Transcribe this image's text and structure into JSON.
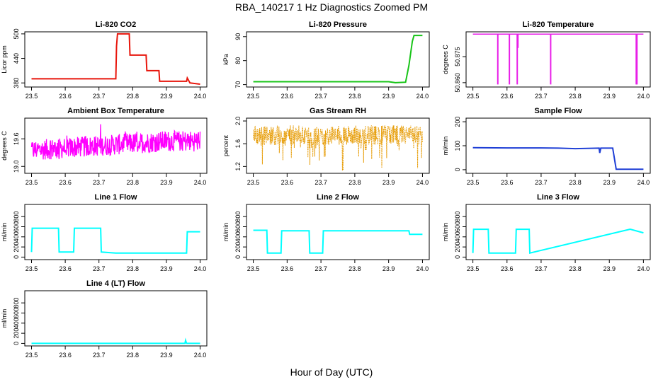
{
  "title": "RBA_140217  1 Hz Diagnostics Zoomed PM",
  "xlabel": "Hour of Day (UTC)",
  "chart_data": [
    {
      "type": "line",
      "title": "Li-820 CO2",
      "ylabel": "Licor ppm",
      "color": "#e8160c",
      "xlim": [
        23.48,
        24.02
      ],
      "ylim": [
        370,
        505
      ],
      "xticks": [
        "23.5",
        "23.6",
        "23.7",
        "23.8",
        "23.9",
        "24.0"
      ],
      "yticks": [
        380,
        440,
        500
      ],
      "series": [
        {
          "x": [
            23.5,
            23.6,
            23.7,
            23.75,
            23.752,
            23.755,
            23.79,
            23.792,
            23.84,
            23.842,
            23.878,
            23.88,
            23.96,
            23.962,
            23.97,
            24.0
          ],
          "y": [
            390,
            390,
            390,
            390,
            470,
            500,
            500,
            448,
            448,
            410,
            410,
            384,
            384,
            392,
            380,
            377
          ]
        }
      ]
    },
    {
      "type": "line",
      "title": "Li-820 Pressure",
      "ylabel": "kPa",
      "color": "#18c418",
      "xlim": [
        23.48,
        24.02
      ],
      "ylim": [
        69,
        92
      ],
      "xticks": [
        "23.5",
        "23.6",
        "23.7",
        "23.8",
        "23.9",
        "24.0"
      ],
      "yticks": [
        70,
        80,
        90
      ],
      "series": [
        {
          "x": [
            23.5,
            23.6,
            23.7,
            23.8,
            23.9,
            23.92,
            23.95,
            23.96,
            23.97,
            23.975,
            24.0
          ],
          "y": [
            71.2,
            71.2,
            71.2,
            71.2,
            71.2,
            70.8,
            71.0,
            78,
            88,
            90.5,
            90.5
          ]
        }
      ]
    },
    {
      "type": "line",
      "title": "Li-820 Temperature",
      "ylabel": "degrees C",
      "color": "#e81ee8",
      "xlim": [
        23.48,
        24.02
      ],
      "ylim": [
        50.8575,
        50.8893
      ],
      "xticks": [
        "23.5",
        "23.6",
        "23.7",
        "23.8",
        "23.9",
        "24.0"
      ],
      "yticks": [
        "50.860",
        "50.875"
      ],
      "baseline": 50.888,
      "spikes": [
        {
          "x": 23.573,
          "y": 50.859
        },
        {
          "x": 23.607,
          "y": 50.859
        },
        {
          "x": 23.63,
          "y": 50.859
        },
        {
          "x": 23.632,
          "y": 50.88
        },
        {
          "x": 23.728,
          "y": 50.859
        },
        {
          "x": 23.979,
          "y": 50.859
        },
        {
          "x": 23.981,
          "y": 50.859
        }
      ]
    },
    {
      "type": "line",
      "title": "Ambient Box Temperature",
      "ylabel": "degrees C",
      "color": "#ff00ff",
      "xlim": [
        23.48,
        24.02
      ],
      "ylim": [
        18.85,
        20.05
      ],
      "xticks": [
        "23.5",
        "23.6",
        "23.7",
        "23.8",
        "23.9",
        "24.0"
      ],
      "yticks": [
        "19.0",
        "19.6"
      ],
      "series": [
        {
          "x": [
            23.5,
            23.6,
            23.7,
            23.8,
            23.9,
            24.0
          ],
          "y": [
            19.35,
            19.4,
            19.45,
            19.5,
            19.55,
            19.55
          ]
        }
      ]
    },
    {
      "type": "line",
      "title": "Gas Stream RH",
      "ylabel": "percent",
      "color": "#e69a00",
      "xlim": [
        23.48,
        24.02
      ],
      "ylim": [
        1.08,
        2.05
      ],
      "xticks": [
        "23.5",
        "23.6",
        "23.7",
        "23.8",
        "23.9",
        "24.0"
      ],
      "yticks": [
        "1.2",
        "1.6",
        "2.0"
      ],
      "series": [
        {
          "x": [
            23.5,
            23.6,
            23.7,
            23.8,
            23.9,
            24.0
          ],
          "y": [
            1.75,
            1.75,
            1.75,
            1.75,
            1.75,
            1.75
          ]
        }
      ]
    },
    {
      "type": "line",
      "title": "Sample Flow",
      "ylabel": "ml/min",
      "color": "#1f3fd6",
      "xlim": [
        23.48,
        24.02
      ],
      "ylim": [
        -15,
        215
      ],
      "xticks": [
        "23.5",
        "23.6",
        "23.7",
        "23.8",
        "23.9",
        "24.0"
      ],
      "yticks": [
        0,
        100,
        200
      ],
      "series": [
        {
          "x": [
            23.5,
            23.6,
            23.7,
            23.75,
            23.8,
            23.87,
            23.872,
            23.875,
            23.91,
            23.92,
            24.0
          ],
          "y": [
            92,
            91,
            91,
            90,
            88,
            90,
            70,
            90,
            90,
            2,
            2
          ]
        }
      ]
    },
    {
      "type": "line",
      "title": "Line 1 Flow",
      "ylabel": "ml/min",
      "color": "#00ffff",
      "xlim": [
        23.48,
        24.02
      ],
      "ylim": [
        -50,
        1040
      ],
      "xticks": [
        "23.5",
        "23.6",
        "23.7",
        "23.8",
        "23.9",
        "24.0"
      ],
      "yticks": [
        0,
        200,
        400,
        600,
        800
      ],
      "series": [
        {
          "x": [
            23.5,
            23.502,
            23.58,
            23.582,
            23.625,
            23.627,
            23.705,
            23.707,
            23.75,
            23.96,
            23.962,
            24.0
          ],
          "y": [
            100,
            570,
            570,
            100,
            100,
            570,
            570,
            100,
            80,
            80,
            500,
            500
          ]
        }
      ]
    },
    {
      "type": "line",
      "title": "Line 2 Flow",
      "ylabel": "ml/min",
      "color": "#00ffff",
      "xlim": [
        23.48,
        24.02
      ],
      "ylim": [
        -50,
        1040
      ],
      "xticks": [
        "23.5",
        "23.6",
        "23.7",
        "23.8",
        "23.9",
        "24.0"
      ],
      "yticks": [
        0,
        200,
        400,
        600,
        800
      ],
      "series": [
        {
          "x": [
            23.5,
            23.54,
            23.542,
            23.582,
            23.584,
            23.665,
            23.667,
            23.705,
            23.707,
            23.96,
            23.962,
            24.0
          ],
          "y": [
            530,
            530,
            80,
            80,
            520,
            520,
            80,
            80,
            520,
            520,
            450,
            450
          ]
        }
      ]
    },
    {
      "type": "line",
      "title": "Line 3 Flow",
      "ylabel": "ml/min",
      "color": "#00ffff",
      "xlim": [
        23.48,
        24.02
      ],
      "ylim": [
        -50,
        1040
      ],
      "xticks": [
        "23.5",
        "23.6",
        "23.7",
        "23.8",
        "23.9",
        "24.0"
      ],
      "yticks": [
        0,
        200,
        400,
        600,
        800
      ],
      "series": [
        {
          "x": [
            23.5,
            23.502,
            23.545,
            23.547,
            23.625,
            23.627,
            23.665,
            23.667,
            23.96,
            23.962,
            24.0
          ],
          "y": [
            80,
            550,
            550,
            80,
            80,
            550,
            550,
            80,
            550,
            550,
            480
          ]
        }
      ]
    },
    {
      "type": "line",
      "title": "Line 4 (LT) Flow",
      "ylabel": "ml/min",
      "color": "#00ffff",
      "xlim": [
        23.48,
        24.02
      ],
      "ylim": [
        -50,
        1040
      ],
      "xticks": [
        "23.5",
        "23.6",
        "23.7",
        "23.8",
        "23.9",
        "24.0"
      ],
      "yticks": [
        0,
        200,
        400,
        600,
        800
      ],
      "series": [
        {
          "x": [
            23.5,
            23.6,
            23.7,
            23.8,
            23.9,
            23.955,
            23.957,
            23.96,
            24.0
          ],
          "y": [
            0,
            0,
            0,
            0,
            0,
            0,
            60,
            0,
            0
          ]
        }
      ]
    }
  ]
}
